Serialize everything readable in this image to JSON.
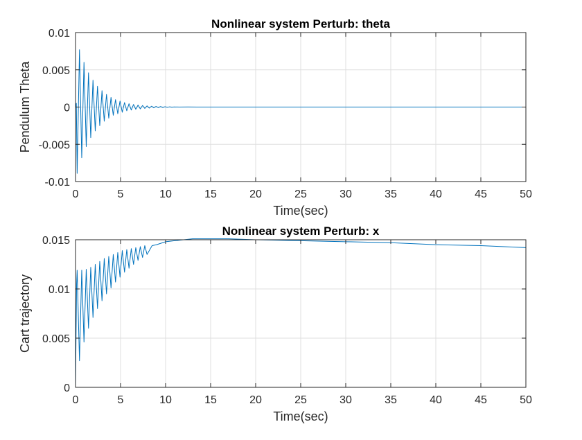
{
  "chart_data": [
    {
      "type": "line",
      "title": "Nonlinear system Perturb: theta",
      "xlabel": "Time(sec)",
      "ylabel": "Pendulum Theta",
      "xlim": [
        0,
        50
      ],
      "ylim": [
        -0.01,
        0.01
      ],
      "xticks": [
        0,
        5,
        10,
        15,
        20,
        25,
        30,
        35,
        40,
        45,
        50
      ],
      "xtick_labels": [
        "0",
        "5",
        "10",
        "15",
        "20",
        "25",
        "30",
        "35",
        "40",
        "45",
        "50"
      ],
      "yticks": [
        -0.01,
        -0.005,
        0,
        0.005,
        0.01
      ],
      "ytick_labels": [
        "-0.01",
        "-0.005",
        "0",
        "0.005",
        "0.01"
      ],
      "grid": true,
      "color": "#0072BD",
      "series": [
        {
          "x": [
            0,
            0.09,
            0.18,
            0.44,
            0.69,
            0.94,
            1.19,
            1.44,
            1.69,
            1.94,
            2.19,
            2.44,
            2.69,
            2.94,
            3.19,
            3.44,
            3.69,
            3.94,
            4.19,
            4.44,
            4.69,
            4.94,
            5.19,
            5.44,
            5.69,
            5.94,
            6.19,
            6.44,
            6.69,
            6.94,
            7.19,
            7.44,
            7.69,
            7.94,
            8.19,
            8.44,
            8.69,
            8.94,
            9.19,
            9.44,
            9.69,
            9.94,
            10.19,
            10.44,
            10.69,
            10.94,
            11.5,
            12.5,
            13.5,
            15,
            20,
            25,
            30,
            35,
            40,
            45,
            50
          ],
          "y": [
            0.0,
            0.0005,
            -0.0089,
            0.0077,
            -0.0068,
            0.006,
            -0.0053,
            0.0046,
            -0.0041,
            0.0036,
            -0.0032,
            0.0028,
            -0.0025,
            0.0022,
            -0.0019,
            0.0017,
            -0.0015,
            0.0013,
            -0.0011,
            0.001,
            -0.0009,
            0.0008,
            -0.0007,
            0.0006,
            -0.0005,
            0.00045,
            -0.0004,
            0.00035,
            -0.0003,
            0.00027,
            -0.00024,
            0.00021,
            -0.00018,
            0.00016,
            -0.00014,
            0.00012,
            -0.0001,
            9e-05,
            -8e-05,
            7e-05,
            -6e-05,
            5e-05,
            -4e-05,
            3e-05,
            -2e-05,
            1e-05,
            0.0,
            1e-05,
            0.0,
            0.0,
            0.0,
            0.0,
            0.0,
            0.0,
            0.0,
            0.0,
            0.0
          ]
        }
      ]
    },
    {
      "type": "line",
      "title": "Nonlinear system Perturb: x",
      "xlabel": "Time(sec)",
      "ylabel": "Cart trajectory",
      "xlim": [
        0,
        50
      ],
      "ylim": [
        0,
        0.015
      ],
      "xticks": [
        0,
        5,
        10,
        15,
        20,
        25,
        30,
        35,
        40,
        45,
        50
      ],
      "xtick_labels": [
        "0",
        "5",
        "10",
        "15",
        "20",
        "25",
        "30",
        "35",
        "40",
        "45",
        "50"
      ],
      "yticks": [
        0,
        0.005,
        0.01,
        0.015
      ],
      "ytick_labels": [
        "0",
        "0.005",
        "0.01",
        "0.015"
      ],
      "grid": true,
      "color": "#0072BD",
      "series": [
        {
          "x": [
            0,
            0.05,
            0.12,
            0.18,
            0.44,
            0.69,
            0.94,
            1.19,
            1.44,
            1.69,
            1.94,
            2.19,
            2.44,
            2.69,
            2.94,
            3.19,
            3.44,
            3.69,
            3.94,
            4.19,
            4.44,
            4.69,
            4.94,
            5.19,
            5.44,
            5.69,
            5.94,
            6.19,
            6.44,
            6.69,
            6.94,
            7.19,
            7.44,
            7.69,
            7.94,
            8.5,
            9,
            10,
            11,
            12,
            13,
            14,
            15,
            17,
            20,
            25,
            30,
            35,
            40,
            45,
            50
          ],
          "y": [
            0.0,
            0.0045,
            0.0105,
            0.0119,
            0.0027,
            0.0119,
            0.0046,
            0.012,
            0.006,
            0.0122,
            0.0071,
            0.0125,
            0.008,
            0.0128,
            0.0088,
            0.0131,
            0.0095,
            0.0133,
            0.0101,
            0.0135,
            0.0107,
            0.0137,
            0.0112,
            0.0139,
            0.0117,
            0.014,
            0.0121,
            0.0141,
            0.0125,
            0.0142,
            0.0129,
            0.0143,
            0.0132,
            0.0144,
            0.0135,
            0.0144,
            0.0145,
            0.0148,
            0.0149,
            0.015,
            0.0151,
            0.0151,
            0.0151,
            0.0151,
            0.015,
            0.0149,
            0.0148,
            0.0147,
            0.0145,
            0.0144,
            0.0142
          ]
        }
      ]
    }
  ]
}
